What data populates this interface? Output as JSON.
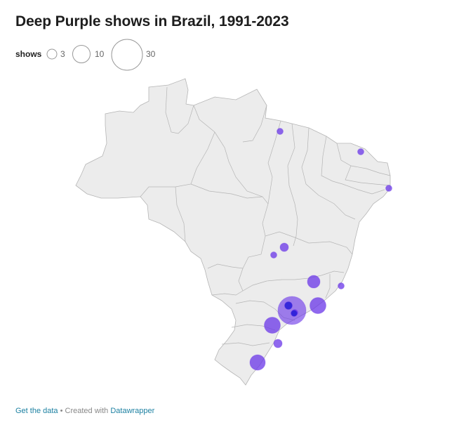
{
  "header": {
    "title": "Deep Purple shows in Brazil, 1991-2023"
  },
  "legend": {
    "label": "shows",
    "items": [
      {
        "value": "3"
      },
      {
        "value": "10"
      },
      {
        "value": "30"
      }
    ]
  },
  "map": {
    "region": "Brazil",
    "colors": {
      "land": "#ececec",
      "border": "#b5b5b5",
      "bubble": "#6a36e8"
    },
    "bubbles": [
      {
        "shows": 1
      },
      {
        "shows": 1
      },
      {
        "shows": 1
      },
      {
        "shows": 1
      },
      {
        "shows": 2
      },
      {
        "shows": 1
      },
      {
        "shows": 4
      },
      {
        "shows": 7
      },
      {
        "shows": 1
      },
      {
        "shows": 27
      },
      {
        "shows": 2
      },
      {
        "shows": 2
      },
      {
        "shows": 7
      },
      {
        "shows": 2
      },
      {
        "shows": 6
      }
    ]
  },
  "footer": {
    "get_data": "Get the data",
    "separator": " • Created with ",
    "tool": "Datawrapper"
  }
}
